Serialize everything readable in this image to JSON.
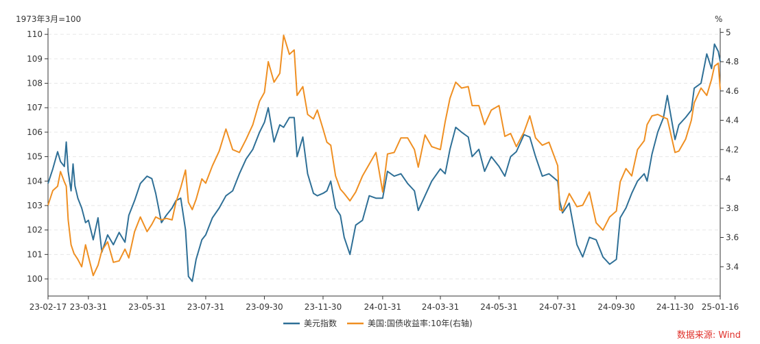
{
  "chart_data": {
    "type": "line",
    "left_unit": "1973年3月=100",
    "right_unit": "%",
    "source": "数据来源: Wind",
    "grid": true,
    "legend_position": "bottom",
    "x_range": [
      "2023-02-17",
      "2025-01-16"
    ],
    "x_ticks": [
      {
        "date": "2023-02-17",
        "label": "23-02-17"
      },
      {
        "date": "2023-03-31",
        "label": "23-03-31"
      },
      {
        "date": "2023-05-31",
        "label": "23-05-31"
      },
      {
        "date": "2023-07-31",
        "label": "23-07-31"
      },
      {
        "date": "2023-09-30",
        "label": "23-09-30"
      },
      {
        "date": "2023-11-30",
        "label": "23-11-30"
      },
      {
        "date": "2024-01-31",
        "label": "24-01-31"
      },
      {
        "date": "2024-03-31",
        "label": "24-03-31"
      },
      {
        "date": "2024-05-31",
        "label": "24-05-31"
      },
      {
        "date": "2024-07-31",
        "label": "24-07-31"
      },
      {
        "date": "2024-09-30",
        "label": "24-09-30"
      },
      {
        "date": "2024-11-30",
        "label": "24-11-30"
      },
      {
        "date": "2025-01-16",
        "label": "25-01-16"
      }
    ],
    "y_left": {
      "min": 99.3,
      "max": 110.2,
      "ticks": [
        100,
        101,
        102,
        103,
        104,
        105,
        106,
        107,
        108,
        109,
        110
      ]
    },
    "y_right": {
      "min": 3.2,
      "max": 5.02,
      "ticks": [
        3.4,
        3.6,
        3.8,
        4,
        4.2,
        4.4,
        4.6,
        4.8,
        5
      ]
    },
    "series": [
      {
        "name": "美元指数",
        "axis": "left",
        "color": "#2e6f96",
        "points": [
          [
            "2023-02-17",
            103.9
          ],
          [
            "2023-02-22",
            104.5
          ],
          [
            "2023-02-27",
            105.2
          ],
          [
            "2023-03-02",
            104.8
          ],
          [
            "2023-03-06",
            104.6
          ],
          [
            "2023-03-08",
            105.6
          ],
          [
            "2023-03-10",
            104.4
          ],
          [
            "2023-03-13",
            103.6
          ],
          [
            "2023-03-15",
            104.7
          ],
          [
            "2023-03-17",
            103.8
          ],
          [
            "2023-03-20",
            103.3
          ],
          [
            "2023-03-24",
            102.9
          ],
          [
            "2023-03-28",
            102.3
          ],
          [
            "2023-03-31",
            102.4
          ],
          [
            "2023-04-05",
            101.6
          ],
          [
            "2023-04-10",
            102.5
          ],
          [
            "2023-04-14",
            101.1
          ],
          [
            "2023-04-20",
            101.8
          ],
          [
            "2023-04-26",
            101.4
          ],
          [
            "2023-05-02",
            101.9
          ],
          [
            "2023-05-08",
            101.5
          ],
          [
            "2023-05-12",
            102.6
          ],
          [
            "2023-05-18",
            103.2
          ],
          [
            "2023-05-24",
            103.9
          ],
          [
            "2023-05-31",
            104.2
          ],
          [
            "2023-06-05",
            104.1
          ],
          [
            "2023-06-09",
            103.5
          ],
          [
            "2023-06-15",
            102.3
          ],
          [
            "2023-06-20",
            102.6
          ],
          [
            "2023-06-26",
            102.9
          ],
          [
            "2023-06-30",
            103.2
          ],
          [
            "2023-07-05",
            103.3
          ],
          [
            "2023-07-10",
            102.0
          ],
          [
            "2023-07-13",
            100.1
          ],
          [
            "2023-07-17",
            99.9
          ],
          [
            "2023-07-21",
            100.8
          ],
          [
            "2023-07-27",
            101.6
          ],
          [
            "2023-07-31",
            101.8
          ],
          [
            "2023-08-07",
            102.5
          ],
          [
            "2023-08-14",
            102.9
          ],
          [
            "2023-08-21",
            103.4
          ],
          [
            "2023-08-28",
            103.6
          ],
          [
            "2023-09-04",
            104.3
          ],
          [
            "2023-09-11",
            104.9
          ],
          [
            "2023-09-18",
            105.3
          ],
          [
            "2023-09-25",
            106.0
          ],
          [
            "2023-09-30",
            106.4
          ],
          [
            "2023-10-04",
            107.0
          ],
          [
            "2023-10-10",
            105.6
          ],
          [
            "2023-10-16",
            106.3
          ],
          [
            "2023-10-20",
            106.2
          ],
          [
            "2023-10-26",
            106.6
          ],
          [
            "2023-10-31",
            106.6
          ],
          [
            "2023-11-03",
            105.0
          ],
          [
            "2023-11-09",
            105.8
          ],
          [
            "2023-11-14",
            104.3
          ],
          [
            "2023-11-20",
            103.5
          ],
          [
            "2023-11-24",
            103.4
          ],
          [
            "2023-11-30",
            103.5
          ],
          [
            "2023-12-04",
            103.6
          ],
          [
            "2023-12-08",
            104.0
          ],
          [
            "2023-12-13",
            102.9
          ],
          [
            "2023-12-18",
            102.6
          ],
          [
            "2023-12-22",
            101.7
          ],
          [
            "2023-12-28",
            101.0
          ],
          [
            "2024-01-03",
            102.2
          ],
          [
            "2024-01-10",
            102.4
          ],
          [
            "2024-01-17",
            103.4
          ],
          [
            "2024-01-24",
            103.3
          ],
          [
            "2024-01-31",
            103.3
          ],
          [
            "2024-02-05",
            104.4
          ],
          [
            "2024-02-12",
            104.2
          ],
          [
            "2024-02-19",
            104.3
          ],
          [
            "2024-02-26",
            103.9
          ],
          [
            "2024-03-04",
            103.6
          ],
          [
            "2024-03-08",
            102.8
          ],
          [
            "2024-03-15",
            103.4
          ],
          [
            "2024-03-22",
            104.0
          ],
          [
            "2024-03-31",
            104.5
          ],
          [
            "2024-04-05",
            104.3
          ],
          [
            "2024-04-10",
            105.3
          ],
          [
            "2024-04-16",
            106.2
          ],
          [
            "2024-04-22",
            106.0
          ],
          [
            "2024-04-29",
            105.8
          ],
          [
            "2024-05-03",
            105.0
          ],
          [
            "2024-05-10",
            105.3
          ],
          [
            "2024-05-16",
            104.4
          ],
          [
            "2024-05-23",
            105.0
          ],
          [
            "2024-05-31",
            104.6
          ],
          [
            "2024-06-06",
            104.2
          ],
          [
            "2024-06-12",
            105.0
          ],
          [
            "2024-06-18",
            105.2
          ],
          [
            "2024-06-26",
            105.9
          ],
          [
            "2024-07-02",
            105.8
          ],
          [
            "2024-07-08",
            105.0
          ],
          [
            "2024-07-15",
            104.2
          ],
          [
            "2024-07-22",
            104.3
          ],
          [
            "2024-07-31",
            104.0
          ],
          [
            "2024-08-02",
            103.2
          ],
          [
            "2024-08-05",
            102.7
          ],
          [
            "2024-08-12",
            103.1
          ],
          [
            "2024-08-20",
            101.4
          ],
          [
            "2024-08-26",
            100.9
          ],
          [
            "2024-09-02",
            101.7
          ],
          [
            "2024-09-09",
            101.6
          ],
          [
            "2024-09-16",
            100.9
          ],
          [
            "2024-09-23",
            100.6
          ],
          [
            "2024-09-30",
            100.8
          ],
          [
            "2024-10-04",
            102.5
          ],
          [
            "2024-10-10",
            102.9
          ],
          [
            "2024-10-16",
            103.5
          ],
          [
            "2024-10-22",
            104.0
          ],
          [
            "2024-10-29",
            104.3
          ],
          [
            "2024-11-01",
            104.0
          ],
          [
            "2024-11-06",
            105.1
          ],
          [
            "2024-11-12",
            106.0
          ],
          [
            "2024-11-18",
            106.6
          ],
          [
            "2024-11-22",
            107.5
          ],
          [
            "2024-11-30",
            105.7
          ],
          [
            "2024-12-04",
            106.3
          ],
          [
            "2024-12-11",
            106.6
          ],
          [
            "2024-12-17",
            106.9
          ],
          [
            "2024-12-20",
            107.8
          ],
          [
            "2024-12-27",
            108.0
          ],
          [
            "2025-01-02",
            109.2
          ],
          [
            "2025-01-07",
            108.6
          ],
          [
            "2025-01-10",
            109.6
          ],
          [
            "2025-01-14",
            109.3
          ],
          [
            "2025-01-16",
            108.9
          ]
        ]
      },
      {
        "name": "美国:国债收益率:10年(右轴)",
        "axis": "right",
        "color": "#ef8f22",
        "points": [
          [
            "2023-02-17",
            3.82
          ],
          [
            "2023-02-22",
            3.92
          ],
          [
            "2023-02-27",
            3.95
          ],
          [
            "2023-03-02",
            4.05
          ],
          [
            "2023-03-06",
            3.98
          ],
          [
            "2023-03-08",
            3.95
          ],
          [
            "2023-03-10",
            3.72
          ],
          [
            "2023-03-13",
            3.55
          ],
          [
            "2023-03-16",
            3.49
          ],
          [
            "2023-03-20",
            3.45
          ],
          [
            "2023-03-24",
            3.4
          ],
          [
            "2023-03-28",
            3.55
          ],
          [
            "2023-03-31",
            3.47
          ],
          [
            "2023-04-05",
            3.34
          ],
          [
            "2023-04-10",
            3.41
          ],
          [
            "2023-04-14",
            3.51
          ],
          [
            "2023-04-20",
            3.57
          ],
          [
            "2023-04-26",
            3.43
          ],
          [
            "2023-05-02",
            3.44
          ],
          [
            "2023-05-08",
            3.52
          ],
          [
            "2023-05-12",
            3.46
          ],
          [
            "2023-05-18",
            3.64
          ],
          [
            "2023-05-24",
            3.74
          ],
          [
            "2023-05-31",
            3.64
          ],
          [
            "2023-06-05",
            3.69
          ],
          [
            "2023-06-09",
            3.74
          ],
          [
            "2023-06-15",
            3.72
          ],
          [
            "2023-06-20",
            3.73
          ],
          [
            "2023-06-26",
            3.72
          ],
          [
            "2023-06-30",
            3.84
          ],
          [
            "2023-07-05",
            3.94
          ],
          [
            "2023-07-10",
            4.06
          ],
          [
            "2023-07-13",
            3.84
          ],
          [
            "2023-07-17",
            3.79
          ],
          [
            "2023-07-21",
            3.86
          ],
          [
            "2023-07-27",
            4.0
          ],
          [
            "2023-07-31",
            3.97
          ],
          [
            "2023-08-07",
            4.09
          ],
          [
            "2023-08-14",
            4.19
          ],
          [
            "2023-08-21",
            4.34
          ],
          [
            "2023-08-28",
            4.2
          ],
          [
            "2023-09-04",
            4.18
          ],
          [
            "2023-09-11",
            4.27
          ],
          [
            "2023-09-18",
            4.37
          ],
          [
            "2023-09-25",
            4.53
          ],
          [
            "2023-09-30",
            4.59
          ],
          [
            "2023-10-04",
            4.8
          ],
          [
            "2023-10-10",
            4.66
          ],
          [
            "2023-10-16",
            4.72
          ],
          [
            "2023-10-20",
            4.98
          ],
          [
            "2023-10-26",
            4.85
          ],
          [
            "2023-10-31",
            4.88
          ],
          [
            "2023-11-03",
            4.57
          ],
          [
            "2023-11-09",
            4.63
          ],
          [
            "2023-11-14",
            4.44
          ],
          [
            "2023-11-20",
            4.41
          ],
          [
            "2023-11-24",
            4.47
          ],
          [
            "2023-11-30",
            4.34
          ],
          [
            "2023-12-04",
            4.25
          ],
          [
            "2023-12-08",
            4.23
          ],
          [
            "2023-12-13",
            4.02
          ],
          [
            "2023-12-18",
            3.93
          ],
          [
            "2023-12-22",
            3.9
          ],
          [
            "2023-12-28",
            3.85
          ],
          [
            "2024-01-03",
            3.91
          ],
          [
            "2024-01-10",
            4.02
          ],
          [
            "2024-01-17",
            4.1
          ],
          [
            "2024-01-24",
            4.18
          ],
          [
            "2024-01-31",
            3.91
          ],
          [
            "2024-02-05",
            4.17
          ],
          [
            "2024-02-12",
            4.18
          ],
          [
            "2024-02-19",
            4.28
          ],
          [
            "2024-02-26",
            4.28
          ],
          [
            "2024-03-04",
            4.2
          ],
          [
            "2024-03-08",
            4.08
          ],
          [
            "2024-03-15",
            4.3
          ],
          [
            "2024-03-22",
            4.22
          ],
          [
            "2024-03-31",
            4.2
          ],
          [
            "2024-04-05",
            4.39
          ],
          [
            "2024-04-10",
            4.55
          ],
          [
            "2024-04-16",
            4.66
          ],
          [
            "2024-04-22",
            4.62
          ],
          [
            "2024-04-29",
            4.63
          ],
          [
            "2024-05-03",
            4.5
          ],
          [
            "2024-05-10",
            4.5
          ],
          [
            "2024-05-16",
            4.37
          ],
          [
            "2024-05-23",
            4.47
          ],
          [
            "2024-05-31",
            4.5
          ],
          [
            "2024-06-06",
            4.29
          ],
          [
            "2024-06-12",
            4.31
          ],
          [
            "2024-06-18",
            4.22
          ],
          [
            "2024-06-26",
            4.32
          ],
          [
            "2024-07-02",
            4.43
          ],
          [
            "2024-07-08",
            4.28
          ],
          [
            "2024-07-15",
            4.23
          ],
          [
            "2024-07-22",
            4.25
          ],
          [
            "2024-07-31",
            4.09
          ],
          [
            "2024-08-02",
            3.79
          ],
          [
            "2024-08-05",
            3.78
          ],
          [
            "2024-08-12",
            3.9
          ],
          [
            "2024-08-20",
            3.81
          ],
          [
            "2024-08-26",
            3.82
          ],
          [
            "2024-09-02",
            3.91
          ],
          [
            "2024-09-09",
            3.7
          ],
          [
            "2024-09-16",
            3.65
          ],
          [
            "2024-09-23",
            3.74
          ],
          [
            "2024-09-30",
            3.78
          ],
          [
            "2024-10-04",
            3.98
          ],
          [
            "2024-10-10",
            4.07
          ],
          [
            "2024-10-16",
            4.02
          ],
          [
            "2024-10-22",
            4.2
          ],
          [
            "2024-10-29",
            4.26
          ],
          [
            "2024-11-01",
            4.37
          ],
          [
            "2024-11-06",
            4.43
          ],
          [
            "2024-11-12",
            4.44
          ],
          [
            "2024-11-18",
            4.42
          ],
          [
            "2024-11-22",
            4.41
          ],
          [
            "2024-11-30",
            4.18
          ],
          [
            "2024-12-04",
            4.19
          ],
          [
            "2024-12-11",
            4.27
          ],
          [
            "2024-12-17",
            4.4
          ],
          [
            "2024-12-20",
            4.52
          ],
          [
            "2024-12-27",
            4.62
          ],
          [
            "2025-01-02",
            4.57
          ],
          [
            "2025-01-07",
            4.68
          ],
          [
            "2025-01-10",
            4.77
          ],
          [
            "2025-01-14",
            4.79
          ],
          [
            "2025-01-16",
            4.61
          ]
        ]
      }
    ]
  }
}
